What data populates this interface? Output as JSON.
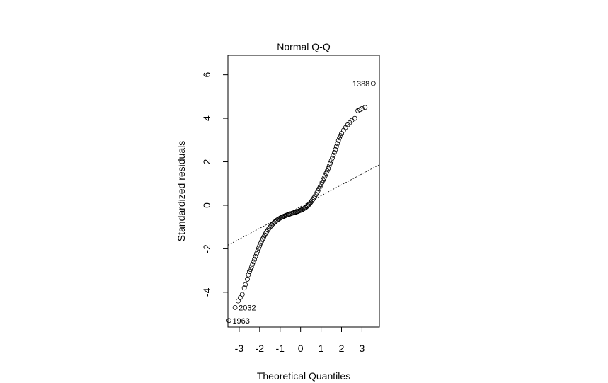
{
  "chart_data": {
    "type": "scatter",
    "title": "Normal Q-Q",
    "xlabel": "Theoretical Quantiles",
    "ylabel": "Standardized residuals",
    "xlim": [
      -3.55,
      3.85
    ],
    "ylim": [
      -5.6,
      6.9
    ],
    "x_ticks": [
      -3,
      -2,
      -1,
      0,
      1,
      2,
      3
    ],
    "x_tick_labels": [
      "-3",
      "-2",
      "-1",
      "0",
      "1",
      "2",
      "3"
    ],
    "y_ticks": [
      -4,
      -2,
      0,
      2,
      4,
      6
    ],
    "y_tick_labels": [
      "-4",
      "-2",
      "0",
      "2",
      "4",
      "6"
    ],
    "grid": false,
    "reference_line": {
      "intercept": -0.06,
      "slope": 0.5,
      "style": "dotted"
    },
    "series": [
      {
        "points": [
          [
            -3.5,
            -5.3
          ],
          [
            -3.2,
            -4.7
          ],
          [
            -3.05,
            -4.4
          ],
          [
            -2.95,
            -4.25
          ],
          [
            -2.85,
            -4.1
          ],
          [
            -2.75,
            -3.8
          ],
          [
            -2.7,
            -3.65
          ],
          [
            -2.6,
            -3.4
          ],
          [
            -2.55,
            -3.2
          ],
          [
            -2.5,
            -3.05
          ],
          [
            -2.45,
            -2.95
          ],
          [
            -2.4,
            -2.85
          ],
          [
            -2.35,
            -2.72
          ],
          [
            -2.3,
            -2.6
          ],
          [
            -2.25,
            -2.48
          ],
          [
            -2.2,
            -2.35
          ],
          [
            -2.15,
            -2.22
          ],
          [
            -2.1,
            -2.1
          ],
          [
            -2.05,
            -1.98
          ],
          [
            -2.0,
            -1.86
          ],
          [
            -1.95,
            -1.75
          ],
          [
            -1.9,
            -1.65
          ],
          [
            -1.85,
            -1.55
          ],
          [
            -1.8,
            -1.46
          ],
          [
            -1.75,
            -1.37
          ],
          [
            -1.7,
            -1.29
          ],
          [
            -1.65,
            -1.21
          ],
          [
            -1.6,
            -1.14
          ],
          [
            -1.55,
            -1.07
          ],
          [
            -1.5,
            -1.01
          ],
          [
            -1.45,
            -0.95
          ],
          [
            -1.4,
            -0.9
          ],
          [
            -1.35,
            -0.85
          ],
          [
            -1.3,
            -0.8
          ],
          [
            -1.25,
            -0.76
          ],
          [
            -1.2,
            -0.72
          ],
          [
            -1.15,
            -0.68
          ],
          [
            -1.1,
            -0.65
          ],
          [
            -1.05,
            -0.62
          ],
          [
            -1.0,
            -0.59
          ],
          [
            -0.95,
            -0.56
          ],
          [
            -0.9,
            -0.54
          ],
          [
            -0.85,
            -0.52
          ],
          [
            -0.8,
            -0.5
          ],
          [
            -0.75,
            -0.48
          ],
          [
            -0.7,
            -0.46
          ],
          [
            -0.65,
            -0.44
          ],
          [
            -0.6,
            -0.43
          ],
          [
            -0.55,
            -0.41
          ],
          [
            -0.5,
            -0.39
          ],
          [
            -0.45,
            -0.38
          ],
          [
            -0.4,
            -0.36
          ],
          [
            -0.35,
            -0.35
          ],
          [
            -0.3,
            -0.33
          ],
          [
            -0.25,
            -0.32
          ],
          [
            -0.2,
            -0.3
          ],
          [
            -0.15,
            -0.29
          ],
          [
            -0.1,
            -0.27
          ],
          [
            -0.05,
            -0.25
          ],
          [
            0.0,
            -0.23
          ],
          [
            0.05,
            -0.21
          ],
          [
            0.1,
            -0.19
          ],
          [
            0.15,
            -0.16
          ],
          [
            0.2,
            -0.13
          ],
          [
            0.25,
            -0.1
          ],
          [
            0.3,
            -0.06
          ],
          [
            0.35,
            -0.02
          ],
          [
            0.4,
            0.03
          ],
          [
            0.45,
            0.08
          ],
          [
            0.5,
            0.14
          ],
          [
            0.55,
            0.2
          ],
          [
            0.6,
            0.27
          ],
          [
            0.65,
            0.34
          ],
          [
            0.7,
            0.42
          ],
          [
            0.75,
            0.5
          ],
          [
            0.8,
            0.58
          ],
          [
            0.85,
            0.67
          ],
          [
            0.9,
            0.76
          ],
          [
            0.95,
            0.85
          ],
          [
            1.0,
            0.95
          ],
          [
            1.05,
            1.05
          ],
          [
            1.1,
            1.15
          ],
          [
            1.15,
            1.25
          ],
          [
            1.2,
            1.36
          ],
          [
            1.25,
            1.47
          ],
          [
            1.3,
            1.58
          ],
          [
            1.35,
            1.69
          ],
          [
            1.4,
            1.81
          ],
          [
            1.45,
            1.93
          ],
          [
            1.5,
            2.05
          ],
          [
            1.55,
            2.17
          ],
          [
            1.6,
            2.3
          ],
          [
            1.65,
            2.43
          ],
          [
            1.7,
            2.56
          ],
          [
            1.75,
            2.7
          ],
          [
            1.8,
            2.84
          ],
          [
            1.85,
            2.98
          ],
          [
            1.9,
            3.1
          ],
          [
            1.95,
            3.2
          ],
          [
            2.0,
            3.3
          ],
          [
            2.1,
            3.45
          ],
          [
            2.2,
            3.58
          ],
          [
            2.3,
            3.7
          ],
          [
            2.4,
            3.8
          ],
          [
            2.5,
            3.9
          ],
          [
            2.65,
            4.0
          ],
          [
            2.8,
            4.35
          ],
          [
            2.9,
            4.4
          ],
          [
            3.0,
            4.45
          ],
          [
            3.15,
            4.5
          ],
          [
            3.55,
            5.6
          ]
        ]
      }
    ],
    "labeled_points": [
      {
        "label": "1388",
        "x": 3.55,
        "y": 5.6,
        "side": "left"
      },
      {
        "label": "2032",
        "x": -3.2,
        "y": -4.7,
        "side": "right"
      },
      {
        "label": "1963",
        "x": -3.5,
        "y": -5.3,
        "side": "right"
      }
    ]
  }
}
